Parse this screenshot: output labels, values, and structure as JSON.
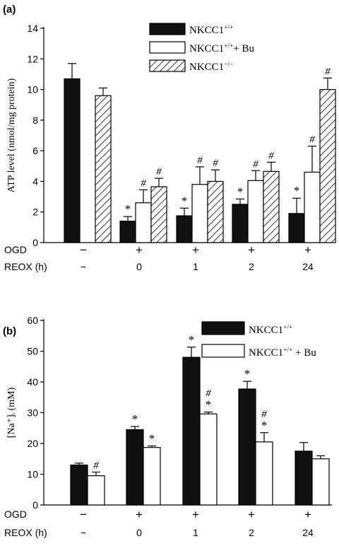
{
  "panels": [
    {
      "panel_label": "(a)",
      "ylabel": "ATP level (nmol/mg protein)",
      "row_labels": [
        "OGD",
        "REOX (h)"
      ],
      "conditions": [
        {
          "ogd": "−",
          "reox": "−"
        },
        {
          "ogd": "+",
          "reox": "0"
        },
        {
          "ogd": "+",
          "reox": "1"
        },
        {
          "ogd": "+",
          "reox": "2"
        },
        {
          "ogd": "+",
          "reox": "24"
        }
      ]
    },
    {
      "panel_label": "(b)",
      "ylabel": "[Na⁺]ᵢ (mM)",
      "row_labels": [
        "OGD",
        "REOX (h)"
      ],
      "conditions": [
        {
          "ogd": "−",
          "reox": "−"
        },
        {
          "ogd": "+",
          "reox": "0"
        },
        {
          "ogd": "+",
          "reox": "1"
        },
        {
          "ogd": "+",
          "reox": "2"
        },
        {
          "ogd": "+",
          "reox": "24"
        }
      ]
    }
  ],
  "colors": {
    "black": "#111111",
    "white": "#ffffff",
    "axis": "#000000"
  },
  "chart_data": [
    {
      "type": "bar",
      "title": "",
      "ylabel": "ATP level (nmol/mg protein)",
      "ylim": [
        0,
        14
      ],
      "yticks": [
        0,
        2,
        4,
        6,
        8,
        10,
        12,
        14
      ],
      "grid": false,
      "legend_position": "top-right",
      "series": [
        {
          "name": "NKCC1+/+",
          "fill": "black",
          "values": [
            10.7,
            1.4,
            1.75,
            2.5,
            1.9
          ],
          "errors": [
            1.0,
            0.3,
            0.5,
            0.35,
            1.0
          ],
          "marks": [
            "",
            "*",
            "*",
            "*",
            "*"
          ]
        },
        {
          "name": "NKCC1+/+ + Bu",
          "fill": "white",
          "values": [
            null,
            2.6,
            3.8,
            4.05,
            4.6
          ],
          "errors": [
            null,
            0.85,
            1.15,
            0.65,
            1.7
          ],
          "marks": [
            "",
            "#",
            "#",
            "#",
            "#"
          ]
        },
        {
          "name": "NKCC1−/−",
          "fill": "hatched",
          "values": [
            9.6,
            3.65,
            4.0,
            4.65,
            10.0
          ],
          "errors": [
            0.5,
            0.55,
            0.75,
            0.6,
            0.75
          ],
          "marks": [
            "",
            "#",
            "#",
            "#",
            "#"
          ]
        }
      ]
    },
    {
      "type": "bar",
      "title": "",
      "ylabel": "[Na⁺]ᵢ (mM)",
      "ylim": [
        0,
        60
      ],
      "yticks": [
        0,
        10,
        20,
        30,
        40,
        50,
        60
      ],
      "grid": false,
      "legend_position": "top-right",
      "series": [
        {
          "name": "NKCC1+/+",
          "fill": "black",
          "values": [
            13.0,
            24.5,
            48.0,
            37.7,
            17.5
          ],
          "errors": [
            0.6,
            1.0,
            3.3,
            2.5,
            2.8
          ],
          "marks": [
            "",
            "*",
            "*",
            "*",
            ""
          ]
        },
        {
          "name": "NKCC1+/+ + Bu",
          "fill": "white",
          "values": [
            9.5,
            18.7,
            29.6,
            20.5,
            15.0
          ],
          "errors": [
            1.2,
            0.5,
            0.6,
            3.0,
            1.0
          ],
          "marks": [
            "#",
            "*",
            "#*",
            "#*",
            ""
          ]
        }
      ]
    }
  ]
}
